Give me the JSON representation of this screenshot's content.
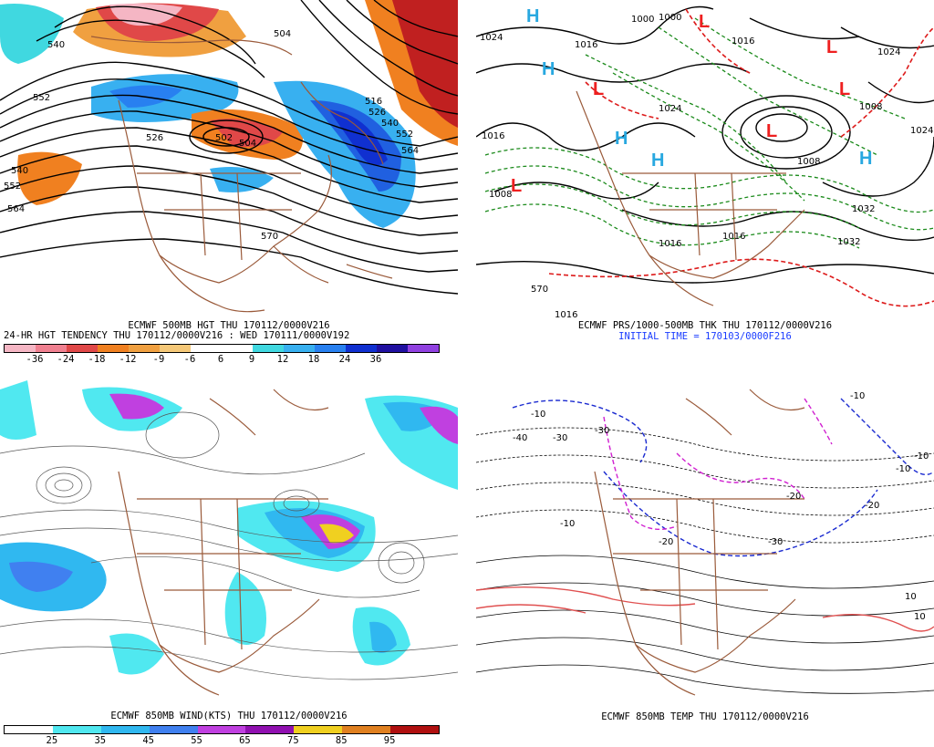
{
  "panel1": {
    "caption1": "ECMWF 500MB HGT THU 170112/0000V216",
    "caption2": "24-HR HGT TENDENCY THU 170112/0000V216 : WED 170111/0000V192",
    "contours": [
      "504",
      "540",
      "552",
      "526",
      "502",
      "504",
      "516",
      "526",
      "540",
      "552",
      "564",
      "540",
      "552",
      "564",
      "570"
    ],
    "colorbar": {
      "colors": [
        "#f5b6c4",
        "#f08090",
        "#e04848",
        "#f08020",
        "#f0a040",
        "#f5c878",
        "#ffffff",
        "#ffffff",
        "#40d8e0",
        "#38b0f0",
        "#2880f0",
        "#1030d0",
        "#2010a0",
        "#9040e0"
      ],
      "ticks": [
        "-36",
        "-24",
        "-18",
        "-12",
        "-9",
        "-6",
        "6",
        "9",
        "12",
        "18",
        "24",
        "36"
      ]
    }
  },
  "panel2": {
    "caption1": "ECMWF PRS/1000-500MB THK THU 170112/0000V216",
    "caption2": "INITIAL TIME = 170103/0000F216",
    "isobars": [
      "1024",
      "1000",
      "1016",
      "1016",
      "1024",
      "1016",
      "1008",
      "1000",
      "1024",
      "1008",
      "1016",
      "1032",
      "1032",
      "1024",
      "1016",
      "1016",
      "1008",
      "570"
    ],
    "highs": [
      "H",
      "H",
      "H",
      "H",
      "H"
    ],
    "lows": [
      "L",
      "L",
      "L",
      "L",
      "L",
      "L"
    ],
    "colors": {
      "high": "#28a8e0",
      "low": "#ee2020",
      "thickness_cold": "#1a8a1a",
      "thickness_warm": "#dd1a1a"
    }
  },
  "panel3": {
    "caption1": "ECMWF 850MB WIND(KTS) THU 170112/0000V216",
    "colorbar": {
      "colors": [
        "#ffffff",
        "#50e8f0",
        "#30b8f0",
        "#4080f0",
        "#c040e0",
        "#9010b0",
        "#f0d020",
        "#e08020",
        "#b01010"
      ],
      "ticks": [
        "25",
        "35",
        "45",
        "55",
        "65",
        "75",
        "85",
        "95"
      ]
    }
  },
  "panel4": {
    "caption1": "ECMWF 850MB TEMP THU 170112/0000V216",
    "labels": [
      "-10",
      "-30",
      "-40",
      "-30",
      "-10",
      "-20",
      "-20",
      "-30",
      "-10",
      "-10",
      "-20",
      "10",
      "10",
      "-10"
    ]
  }
}
